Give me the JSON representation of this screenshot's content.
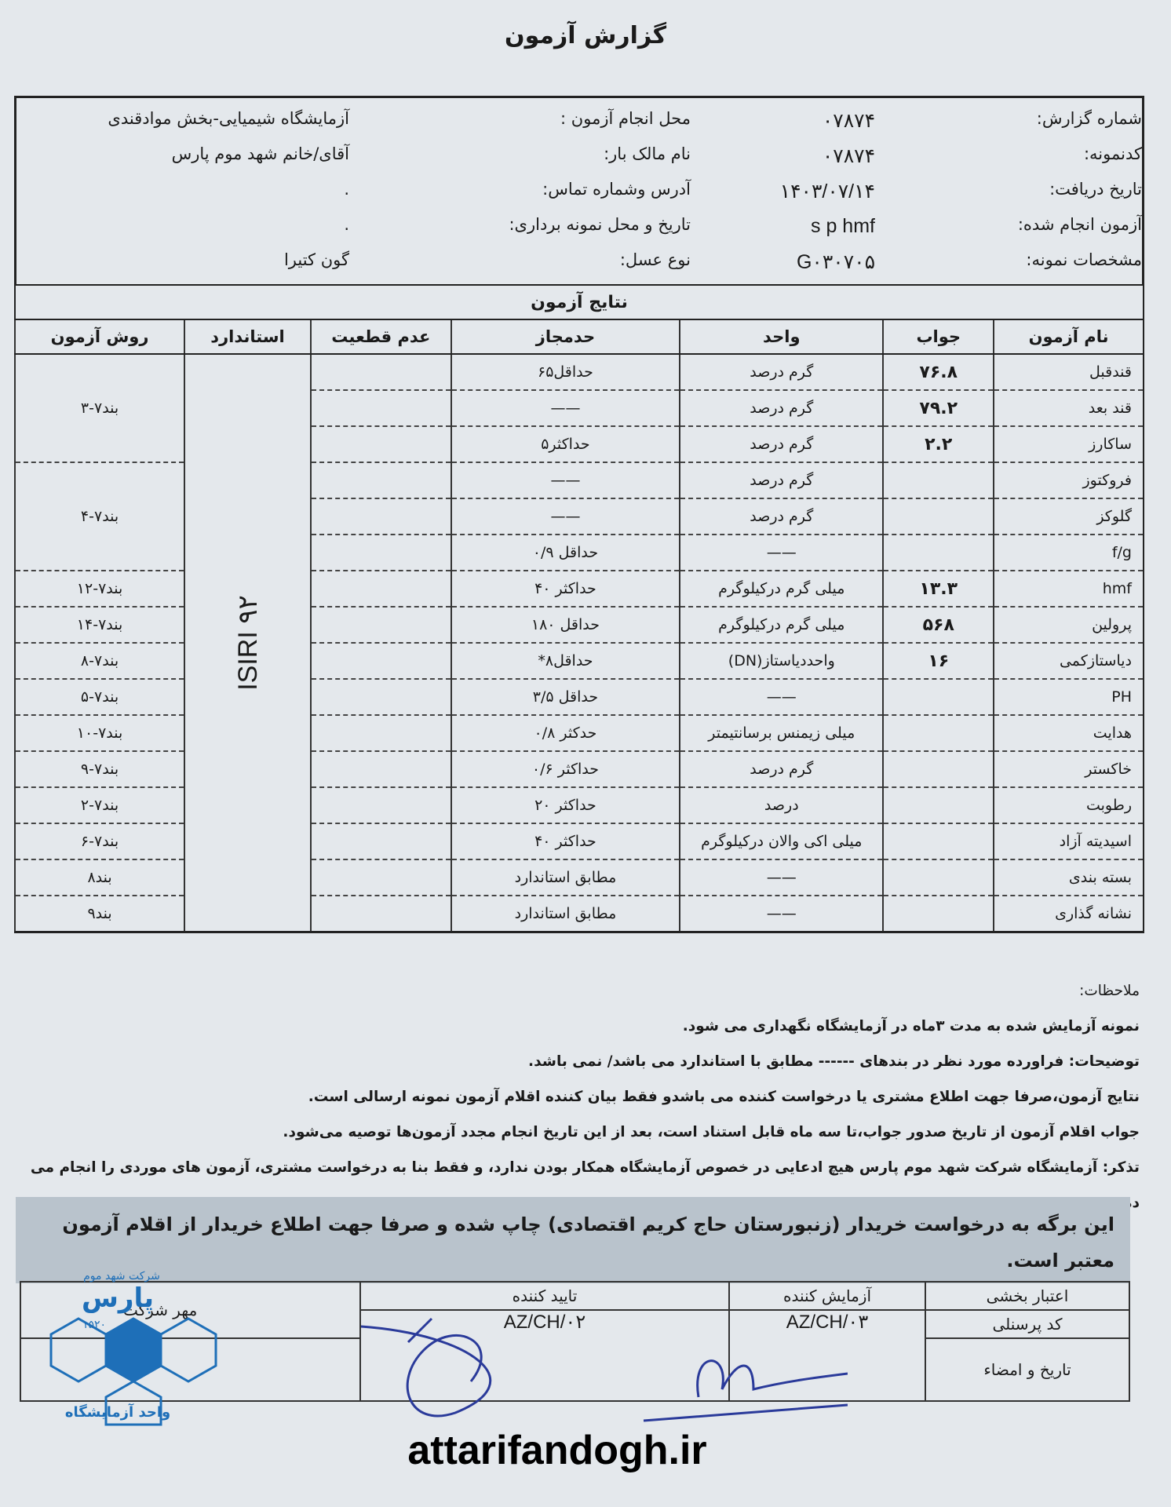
{
  "title": "گزارش آزمون",
  "header": [
    {
      "label": "شماره گزارش:",
      "value": "۰۷۸۷۴",
      "label2": "محل انجام آزمون :",
      "value2": "آزمایشگاه شیمیایی-بخش موادقندی"
    },
    {
      "label": "کدنمونه:",
      "value": "۰۷۸۷۴",
      "label2": "نام مالک بار:",
      "value2": "آقای/خانم شهد موم پارس"
    },
    {
      "label": "تاریخ دریافت:",
      "value": "۱۴۰۳/۰۷/۱۴",
      "label2": "آدرس وشماره تماس:",
      "value2": "."
    },
    {
      "label": "آزمون انجام شده:",
      "value": "s p hmf",
      "label2": "تاریخ و محل نمونه برداری:",
      "value2": "."
    },
    {
      "label": "مشخصات نمونه:",
      "value": "G۰۳۰۷۰۵",
      "label2": "نوع عسل:",
      "value2": "گون کتیرا"
    }
  ],
  "results": {
    "title": "نتایج آزمون",
    "columns": [
      "نام آزمون",
      "جواب",
      "واحد",
      "حدمجاز",
      "عدم قطعیت",
      "استاندارد",
      "روش آزمون"
    ],
    "standard": "ISIRI ۹۲",
    "rows": [
      {
        "name": "قندقبل",
        "answer": "۷۶.۸",
        "unit": "گرم درصد",
        "limit": "حداقل۶۵",
        "method": "بند۷-۳",
        "span": 3
      },
      {
        "name": "قند بعد",
        "answer": "۷۹.۲",
        "unit": "گرم درصد",
        "limit": "——"
      },
      {
        "name": "ساکارز",
        "answer": "۲.۲",
        "unit": "گرم درصد",
        "limit": "حداکثر۵"
      },
      {
        "name": "فروکتوز",
        "answer": "",
        "unit": "گرم درصد",
        "limit": "——",
        "method": "بند۷-۴",
        "span": 3
      },
      {
        "name": "گلوکز",
        "answer": "",
        "unit": "گرم درصد",
        "limit": "——"
      },
      {
        "name": "f/g",
        "answer": "",
        "unit": "——",
        "limit": "حداقل ۰/۹"
      },
      {
        "name": "hmf",
        "answer": "۱۳.۳",
        "unit": "میلی گرم درکیلوگرم",
        "limit": "حداکثر ۴۰",
        "method": "بند۷-۱۲",
        "span": 1
      },
      {
        "name": "پرولین",
        "answer": "۵۶۸",
        "unit": "میلی گرم درکیلوگرم",
        "limit": "حداقل ۱۸۰",
        "method": "بند۷-۱۴",
        "span": 1
      },
      {
        "name": "دیاستازکمی",
        "answer": "۱۶",
        "unit": "واحددیاستاز(DN)",
        "limit": "حداقل۸*",
        "method": "بند۷-۸",
        "span": 1
      },
      {
        "name": "PH",
        "answer": "",
        "unit": "——",
        "limit": "حداقل ۳/۵",
        "method": "بند۷-۵",
        "span": 1
      },
      {
        "name": "هدایت",
        "answer": "",
        "unit": "میلی زیمنس برسانتیمتر",
        "limit": "حدکثر ۰/۸",
        "method": "بند۷-۱۰",
        "span": 1
      },
      {
        "name": "خاکستر",
        "answer": "",
        "unit": "گرم درصد",
        "limit": "حداکثر ۰/۶",
        "method": "بند۷-۹",
        "span": 1
      },
      {
        "name": "رطوبت",
        "answer": "",
        "unit": "درصد",
        "limit": "حداکثر ۲۰",
        "method": "بند۷-۲",
        "span": 1
      },
      {
        "name": "اسیدیته آزاد",
        "answer": "",
        "unit": "میلی اکی والان درکیلوگرم",
        "limit": "حداکثر ۴۰",
        "method": "بند۷-۶",
        "span": 1
      },
      {
        "name": "بسته بندی",
        "answer": "",
        "unit": "——",
        "limit": "مطابق استاندارد",
        "method": "بند۸",
        "span": 1
      },
      {
        "name": "نشانه گذاری",
        "answer": "",
        "unit": "——",
        "limit": "مطابق استاندارد",
        "method": "بند۹",
        "span": 1
      }
    ]
  },
  "notes": {
    "heading": "ملاحظات:",
    "lines": [
      "نمونه آزمایش شده به مدت ۳ماه در آزمایشگاه  نگهداری می شود.",
      "توضیحات:  فراورده مورد نظر در بندهای ------ مطابق با استاندارد می باشد/ نمی باشد.",
      "نتایج آزمون،صرفا جهت اطلاع مشتری یا درخواست کننده می باشدو فقط بیان کننده اقلام آزمون نمونه ارسالی است.",
      "جواب اقلام آزمون از تاریخ صدور جواب،تا سه ماه قابل استناد است، بعد از این تاریخ انجام مجدد آزمون‌ها توصیه می‌شود.",
      "تذکر: آزمایشگاه شرکت شهد موم پارس هیچ ادعایی در خصوص آزمایشگاه همکار بودن ندارد، و فقط بنا به درخواست مشتری، آزمون های موردی را انجام می دهد."
    ]
  },
  "banner": "این برگه به درخواست خریدار (زنبورستان حاج کریم اقتصادی)  چاپ شده و صرفا جهت اطلاع خریدار از اقلام آزمون معتبر است.",
  "signature": {
    "rows": [
      "اعتبار بخشی",
      "کد پرسنلی",
      "تاریخ و امضاء"
    ],
    "tester_label": "آزمایش کننده",
    "tester_code": "AZ/CH/۰۳",
    "approver_label": "تایید کننده",
    "approver_code": "AZ/CH/۰۲",
    "stamp_label": "مهر شرکت"
  },
  "stamp": {
    "text": [
      "شرکت شهد موم",
      "پارس",
      "۱۵۲۰",
      "واحد آزمایشگاه"
    ],
    "color": "#1e6fb8"
  },
  "watermark": "attarifandogh.ir"
}
